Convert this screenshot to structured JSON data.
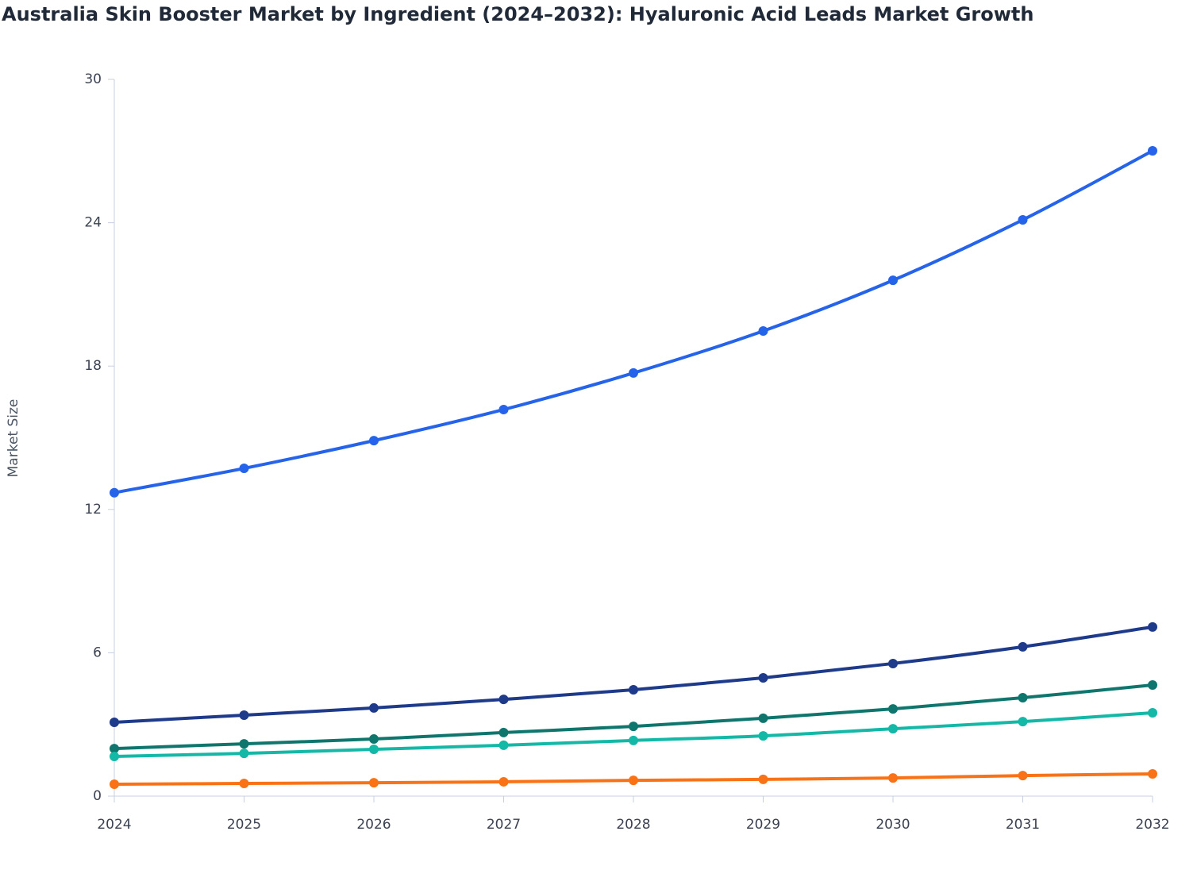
{
  "chart_data": {
    "type": "line",
    "title": "Australia Skin Booster Market by Ingredient (2024–2032): Hyaluronic Acid Leads Market Growth",
    "y_label": "Market Size",
    "x": [
      2024,
      2025,
      2026,
      2027,
      2028,
      2029,
      2030,
      2031,
      2032
    ],
    "xlim": [
      2024,
      2032
    ],
    "xticks": [
      2024,
      2025,
      2026,
      2027,
      2028,
      2029,
      2030,
      2031,
      2032
    ],
    "ylim": [
      0,
      30
    ],
    "yticks": [
      0,
      6,
      12,
      18,
      24,
      30
    ],
    "series": [
      {
        "color": "#2563eb",
        "values": [
          12.7,
          13.72,
          14.88,
          16.18,
          17.71,
          19.47,
          21.59,
          24.12,
          27.01
        ]
      },
      {
        "color": "#1e3a8a",
        "values": [
          3.09,
          3.39,
          3.69,
          4.05,
          4.45,
          4.95,
          5.55,
          6.25,
          7.08
        ]
      },
      {
        "color": "#0f766e",
        "values": [
          1.99,
          2.19,
          2.39,
          2.66,
          2.92,
          3.26,
          3.65,
          4.12,
          4.65
        ]
      },
      {
        "color": "#14b8a6",
        "values": [
          1.66,
          1.79,
          1.96,
          2.13,
          2.33,
          2.52,
          2.82,
          3.12,
          3.49
        ]
      },
      {
        "color": "#f97316",
        "values": [
          0.5,
          0.53,
          0.56,
          0.6,
          0.66,
          0.7,
          0.76,
          0.86,
          0.93
        ]
      }
    ]
  }
}
